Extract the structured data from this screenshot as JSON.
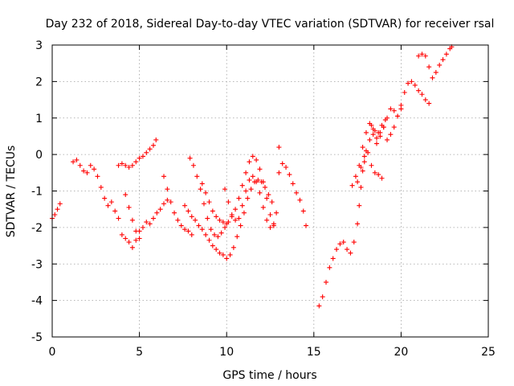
{
  "chart_data": {
    "type": "scatter",
    "title": "Day 232 of 2018, Sidereal Day-to-day VTEC variation (SDTVAR) for receiver rsal",
    "xlabel": "GPS time / hours",
    "ylabel": "SDTVAR / TECUs",
    "xlim": [
      0,
      25
    ],
    "ylim": [
      -5,
      3
    ],
    "xticks": [
      "0",
      "5",
      "10",
      "15",
      "20",
      "25"
    ],
    "yticks": [
      "-5",
      "-4",
      "-3",
      "-2",
      "-1",
      "0",
      "1",
      "2",
      "3"
    ],
    "grid": true,
    "marker": "plus",
    "color": "#ff0000",
    "series": [
      {
        "values": [
          [
            0.0,
            -1.75
          ],
          [
            0.15,
            -1.65
          ],
          [
            0.3,
            -1.5
          ],
          [
            0.45,
            -1.35
          ],
          [
            1.2,
            -0.2
          ],
          [
            1.4,
            -0.15
          ],
          [
            1.6,
            -0.3
          ],
          [
            1.8,
            -0.45
          ],
          [
            2.0,
            -0.5
          ],
          [
            2.2,
            -0.3
          ],
          [
            2.4,
            -0.4
          ],
          [
            2.6,
            -0.6
          ],
          [
            2.8,
            -0.9
          ],
          [
            3.0,
            -1.2
          ],
          [
            3.2,
            -1.4
          ],
          [
            3.4,
            -1.3
          ],
          [
            3.6,
            -1.55
          ],
          [
            3.8,
            -1.75
          ],
          [
            3.8,
            -0.3
          ],
          [
            4.0,
            -0.25
          ],
          [
            4.2,
            -0.3
          ],
          [
            4.4,
            -0.35
          ],
          [
            4.6,
            -0.3
          ],
          [
            4.8,
            -0.2
          ],
          [
            5.0,
            -0.1
          ],
          [
            5.2,
            -0.05
          ],
          [
            5.4,
            0.05
          ],
          [
            5.6,
            0.15
          ],
          [
            5.8,
            0.25
          ],
          [
            5.95,
            0.4
          ],
          [
            4.0,
            -2.2
          ],
          [
            4.2,
            -2.3
          ],
          [
            4.4,
            -2.4
          ],
          [
            4.6,
            -2.55
          ],
          [
            4.8,
            -2.35
          ],
          [
            5.0,
            -2.1
          ],
          [
            5.2,
            -2.0
          ],
          [
            5.4,
            -1.85
          ],
          [
            5.6,
            -1.9
          ],
          [
            5.8,
            -1.75
          ],
          [
            6.0,
            -1.6
          ],
          [
            6.2,
            -1.5
          ],
          [
            6.4,
            -1.35
          ],
          [
            6.6,
            -1.25
          ],
          [
            4.2,
            -1.1
          ],
          [
            4.4,
            -1.45
          ],
          [
            4.6,
            -1.8
          ],
          [
            4.8,
            -2.1
          ],
          [
            5.0,
            -2.3
          ],
          [
            6.4,
            -0.6
          ],
          [
            6.6,
            -0.95
          ],
          [
            6.8,
            -1.3
          ],
          [
            7.0,
            -1.6
          ],
          [
            7.2,
            -1.8
          ],
          [
            7.4,
            -1.95
          ],
          [
            7.6,
            -2.05
          ],
          [
            7.8,
            -2.1
          ],
          [
            8.0,
            -2.2
          ],
          [
            7.6,
            -1.4
          ],
          [
            7.8,
            -1.55
          ],
          [
            8.0,
            -1.7
          ],
          [
            8.2,
            -1.8
          ],
          [
            8.4,
            -1.95
          ],
          [
            8.6,
            -2.05
          ],
          [
            8.8,
            -2.2
          ],
          [
            9.0,
            -2.35
          ],
          [
            9.2,
            -2.5
          ],
          [
            9.4,
            -2.6
          ],
          [
            9.6,
            -2.7
          ],
          [
            9.8,
            -2.75
          ],
          [
            10.0,
            -2.85
          ],
          [
            10.2,
            -2.75
          ],
          [
            10.4,
            -2.55
          ],
          [
            10.6,
            -2.25
          ],
          [
            10.8,
            -1.95
          ],
          [
            11.0,
            -1.6
          ],
          [
            11.2,
            -1.2
          ],
          [
            11.4,
            -0.95
          ],
          [
            11.6,
            -0.75
          ],
          [
            11.8,
            -0.7
          ],
          [
            12.0,
            -0.75
          ],
          [
            12.2,
            -0.9
          ],
          [
            12.4,
            -1.1
          ],
          [
            12.6,
            -1.3
          ],
          [
            7.9,
            -0.1
          ],
          [
            8.1,
            -0.3
          ],
          [
            8.3,
            -0.6
          ],
          [
            8.5,
            -0.95
          ],
          [
            8.7,
            -1.35
          ],
          [
            8.9,
            -1.75
          ],
          [
            9.1,
            -2.05
          ],
          [
            9.3,
            -2.2
          ],
          [
            9.5,
            -2.25
          ],
          [
            9.7,
            -2.15
          ],
          [
            9.9,
            -2.0
          ],
          [
            10.1,
            -1.85
          ],
          [
            10.3,
            -1.7
          ],
          [
            10.5,
            -1.5
          ],
          [
            10.7,
            -1.2
          ],
          [
            10.9,
            -0.85
          ],
          [
            11.1,
            -0.5
          ],
          [
            11.3,
            -0.2
          ],
          [
            11.5,
            -0.05
          ],
          [
            11.7,
            -0.15
          ],
          [
            11.9,
            -0.4
          ],
          [
            12.1,
            -0.75
          ],
          [
            12.3,
            -1.2
          ],
          [
            12.5,
            -1.65
          ],
          [
            12.7,
            -1.95
          ],
          [
            8.6,
            -0.8
          ],
          [
            8.8,
            -1.05
          ],
          [
            9.0,
            -1.3
          ],
          [
            9.2,
            -1.55
          ],
          [
            9.4,
            -1.7
          ],
          [
            9.6,
            -1.8
          ],
          [
            9.8,
            -1.85
          ],
          [
            10.0,
            -1.9
          ],
          [
            9.9,
            -0.95
          ],
          [
            10.1,
            -1.3
          ],
          [
            10.3,
            -1.65
          ],
          [
            10.5,
            -1.8
          ],
          [
            10.7,
            -1.75
          ],
          [
            10.9,
            -1.4
          ],
          [
            11.1,
            -1.0
          ],
          [
            11.3,
            -0.7
          ],
          [
            11.5,
            -0.6
          ],
          [
            11.7,
            -0.75
          ],
          [
            11.9,
            -1.05
          ],
          [
            12.1,
            -1.45
          ],
          [
            12.3,
            -1.8
          ],
          [
            12.5,
            -2.0
          ],
          [
            12.7,
            -1.9
          ],
          [
            12.85,
            -1.6
          ],
          [
            13.0,
            0.2
          ],
          [
            13.0,
            -0.5
          ],
          [
            13.2,
            -0.25
          ],
          [
            13.4,
            -0.35
          ],
          [
            13.6,
            -0.55
          ],
          [
            13.8,
            -0.8
          ],
          [
            14.0,
            -1.05
          ],
          [
            14.2,
            -1.25
          ],
          [
            14.4,
            -1.55
          ],
          [
            14.55,
            -1.95
          ],
          [
            15.3,
            -4.15
          ],
          [
            15.5,
            -3.9
          ],
          [
            15.7,
            -3.5
          ],
          [
            15.9,
            -3.1
          ],
          [
            16.1,
            -2.85
          ],
          [
            16.3,
            -2.6
          ],
          [
            16.5,
            -2.45
          ],
          [
            16.7,
            -2.4
          ],
          [
            16.9,
            -2.6
          ],
          [
            17.1,
            -2.7
          ],
          [
            17.3,
            -2.4
          ],
          [
            17.5,
            -1.9
          ],
          [
            17.6,
            -1.4
          ],
          [
            17.7,
            -0.9
          ],
          [
            17.8,
            -0.45
          ],
          [
            17.9,
            -0.2
          ],
          [
            18.0,
            0.1
          ],
          [
            18.2,
            0.4
          ],
          [
            18.4,
            0.55
          ],
          [
            18.6,
            0.45
          ],
          [
            18.8,
            0.6
          ],
          [
            19.0,
            0.75
          ],
          [
            19.2,
            1.0
          ],
          [
            19.4,
            1.25
          ],
          [
            19.6,
            1.2
          ],
          [
            19.8,
            1.05
          ],
          [
            20.0,
            1.35
          ],
          [
            20.2,
            1.7
          ],
          [
            20.4,
            1.95
          ],
          [
            20.6,
            2.0
          ],
          [
            20.8,
            1.9
          ],
          [
            21.0,
            1.75
          ],
          [
            21.2,
            1.65
          ],
          [
            21.4,
            1.5
          ],
          [
            21.6,
            1.4
          ],
          [
            17.2,
            -0.85
          ],
          [
            17.4,
            -0.6
          ],
          [
            17.6,
            -0.3
          ],
          [
            17.8,
            0.2
          ],
          [
            18.0,
            0.6
          ],
          [
            18.2,
            0.85
          ],
          [
            18.4,
            0.7
          ],
          [
            18.6,
            0.3
          ],
          [
            18.8,
            0.5
          ],
          [
            19.0,
            0.75
          ],
          [
            19.2,
            0.4
          ],
          [
            19.4,
            0.55
          ],
          [
            19.6,
            0.75
          ],
          [
            19.8,
            1.05
          ],
          [
            20.0,
            1.25
          ],
          [
            17.5,
            -0.75
          ],
          [
            17.7,
            -0.35
          ],
          [
            17.9,
            -0.05
          ],
          [
            18.1,
            0.05
          ],
          [
            18.3,
            -0.3
          ],
          [
            18.5,
            -0.5
          ],
          [
            18.7,
            -0.55
          ],
          [
            18.9,
            -0.65
          ],
          [
            18.3,
            0.8
          ],
          [
            18.5,
            0.65
          ],
          [
            18.7,
            0.6
          ],
          [
            18.9,
            0.8
          ],
          [
            19.1,
            0.95
          ],
          [
            21.0,
            2.7
          ],
          [
            21.2,
            2.75
          ],
          [
            21.4,
            2.7
          ],
          [
            21.6,
            2.4
          ],
          [
            21.8,
            2.1
          ],
          [
            22.0,
            2.25
          ],
          [
            22.2,
            2.45
          ],
          [
            22.4,
            2.6
          ],
          [
            22.6,
            2.75
          ],
          [
            22.8,
            2.9
          ],
          [
            22.9,
            2.95
          ]
        ]
      }
    ]
  }
}
